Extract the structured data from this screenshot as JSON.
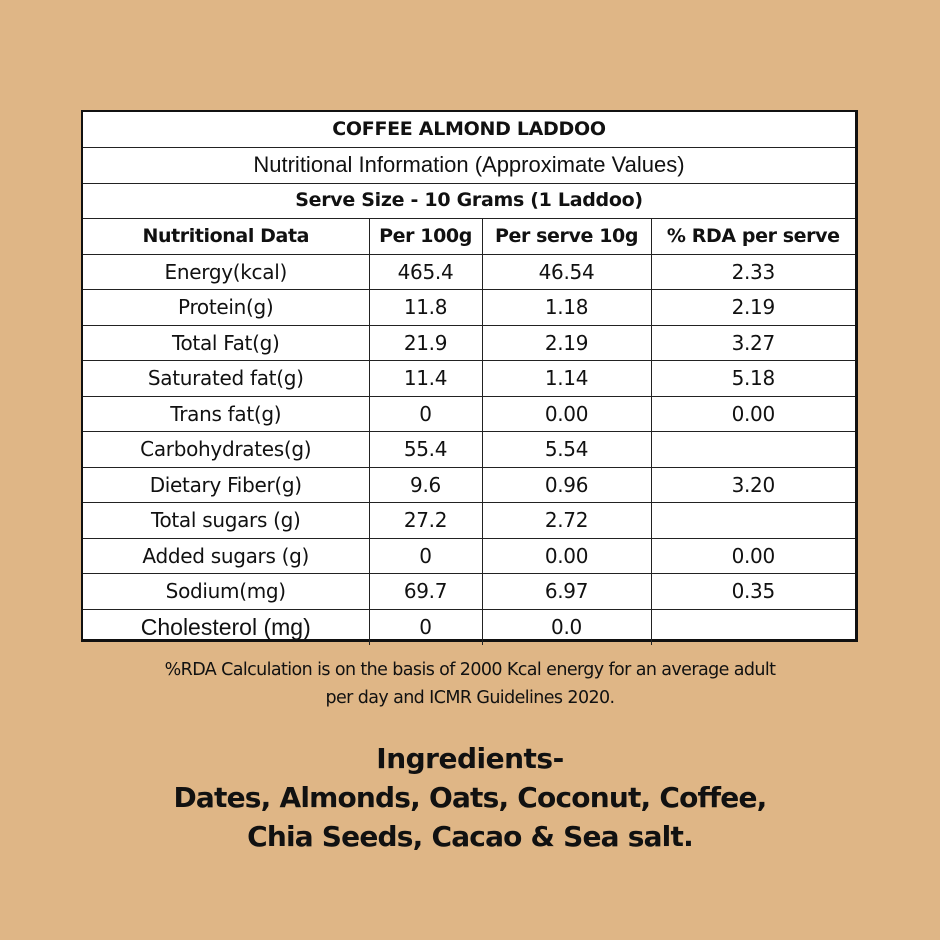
{
  "table": {
    "title": "COFFEE ALMOND LADDOO",
    "subtitle": "Nutritional Information (Approximate Values)",
    "serve_size": "Serve Size - 10 Grams (1 Laddoo)",
    "headers": [
      "Nutritional Data",
      "Per 100g",
      "Per serve 10g",
      "% RDA per serve"
    ],
    "rows": [
      {
        "nutrient": "Energy(kcal)",
        "per_100g": "465.4",
        "per_serve": "46.54",
        "rda": "2.33"
      },
      {
        "nutrient": "Protein(g)",
        "per_100g": "11.8",
        "per_serve": "1.18",
        "rda": "2.19"
      },
      {
        "nutrient": "Total Fat(g)",
        "per_100g": "21.9",
        "per_serve": "2.19",
        "rda": "3.27"
      },
      {
        "nutrient": "Saturated fat(g)",
        "per_100g": "11.4",
        "per_serve": "1.14",
        "rda": "5.18"
      },
      {
        "nutrient": "Trans fat(g)",
        "per_100g": "0",
        "per_serve": "0.00",
        "rda": "0.00"
      },
      {
        "nutrient": "Carbohydrates(g)",
        "per_100g": "55.4",
        "per_serve": "5.54",
        "rda": ""
      },
      {
        "nutrient": "Dietary Fiber(g)",
        "per_100g": "9.6",
        "per_serve": "0.96",
        "rda": "3.20"
      },
      {
        "nutrient": "Total sugars (g)",
        "per_100g": "27.2",
        "per_serve": "2.72",
        "rda": ""
      },
      {
        "nutrient": "Added sugars (g)",
        "per_100g": "0",
        "per_serve": "0.00",
        "rda": "0.00"
      },
      {
        "nutrient": "Sodium(mg)",
        "per_100g": "69.7",
        "per_serve": "6.97",
        "rda": "0.35"
      },
      {
        "nutrient": "Cholesterol (mg)",
        "per_100g": "0",
        "per_serve": "0.0",
        "rda": ""
      }
    ]
  },
  "footnote": {
    "line1": "%RDA Calculation is on the basis of 2000 Kcal energy for an average adult",
    "line2": "per day and ICMR Guidelines 2020."
  },
  "ingredients": {
    "title": "Ingredients-",
    "line1": "Dates, Almonds, Oats, Coconut, Coffee,",
    "line2": "Chia Seeds, Cacao & Sea salt."
  },
  "colors": {
    "background": "#dfb686",
    "table_background": "#ffffff",
    "text": "#111111"
  }
}
